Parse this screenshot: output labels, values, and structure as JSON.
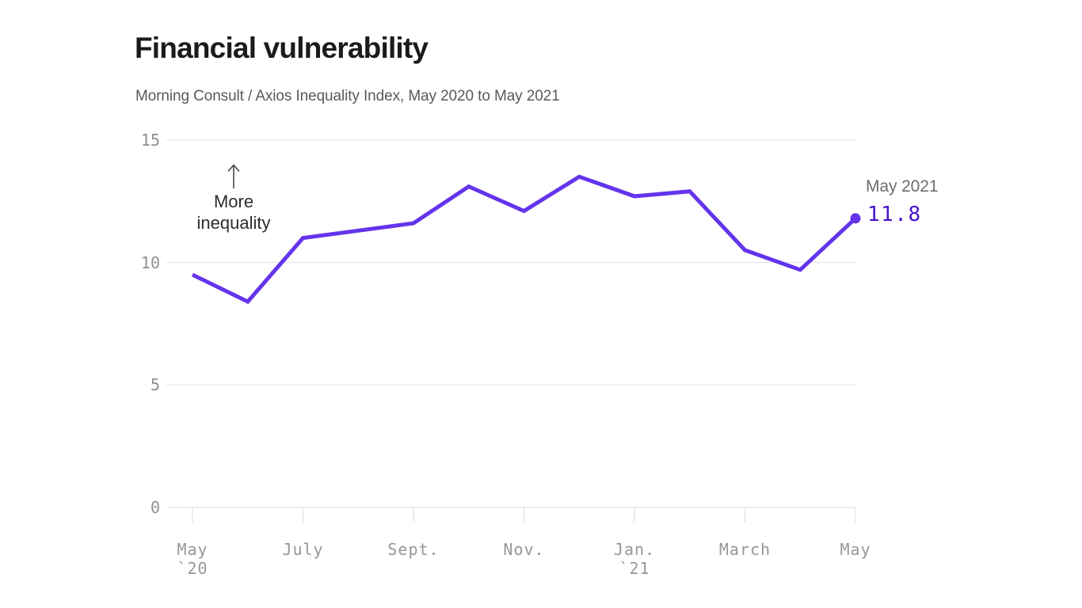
{
  "annotation": {
    "line1": "More",
    "line2": "inequality",
    "arrow_direction": "up"
  },
  "chart_data": {
    "type": "line",
    "title": "Financial vulnerability",
    "subtitle": "Morning Consult / Axios Inequality Index, May 2020 to May 2021",
    "categories": [
      "May 2020",
      "June 2020",
      "July 2020",
      "Aug. 2020",
      "Sept. 2020",
      "Oct. 2020",
      "Nov. 2020",
      "Dec. 2020",
      "Jan. 2021",
      "Feb. 2021",
      "March 2021",
      "April 2021",
      "May 2021"
    ],
    "values": [
      9.5,
      8.4,
      11.0,
      11.3,
      11.6,
      13.1,
      12.1,
      13.5,
      12.7,
      12.9,
      10.5,
      9.7,
      11.8
    ],
    "ylim": [
      0,
      15
    ],
    "yticks": [
      0,
      5,
      10,
      15
    ],
    "xticks": [
      {
        "index": 0,
        "label": "May",
        "sub": "`20"
      },
      {
        "index": 2,
        "label": "July",
        "sub": ""
      },
      {
        "index": 4,
        "label": "Sept.",
        "sub": ""
      },
      {
        "index": 6,
        "label": "Nov.",
        "sub": ""
      },
      {
        "index": 8,
        "label": "Jan.",
        "sub": "`21"
      },
      {
        "index": 10,
        "label": "March",
        "sub": ""
      },
      {
        "index": 12,
        "label": "May",
        "sub": ""
      }
    ],
    "grid": true,
    "legend": false,
    "endpoint": {
      "label": "May 2021",
      "value": "11.8"
    },
    "colors": {
      "line": "#6434ec",
      "endpoint_dot": "#6434ec",
      "endpoint_value_text": "#4713ca",
      "gridline": "#e2e2e2",
      "tick": "#dcdcdc",
      "axis_label": "#8f8f8f",
      "annotation_text": "#2d2d2d",
      "arrow": "#4b4b4b"
    }
  }
}
